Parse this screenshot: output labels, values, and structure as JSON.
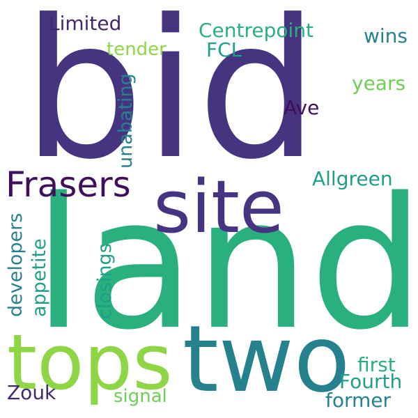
{
  "colors": {
    "background": "#ffffff",
    "indigo": "#463480",
    "dark_purple": "#3f0f5a",
    "deep_purple": "#44286e",
    "teal": "#26818e",
    "teal_light": "#1f9e89",
    "green": "#2ab07f",
    "light_green": "#6ece58",
    "lime": "#8ed645"
  },
  "words": {
    "bid": "bid",
    "land": "land",
    "site": "site",
    "tops": "tops",
    "two": "two",
    "frasers": "Frasers",
    "limited": "Limited",
    "centrepoint": "Centrepoint",
    "wins": "wins",
    "tender": "tender",
    "fcl": "FCL",
    "years": "years",
    "unabating": "unabating",
    "ave": "Ave",
    "allgreen": "Allgreen",
    "developers": "developers",
    "appetite": "appetite",
    "closings": "closings",
    "first": "first",
    "fourth": "Fourth",
    "former": "former",
    "zouk": "Zouk",
    "signal": "signal"
  }
}
